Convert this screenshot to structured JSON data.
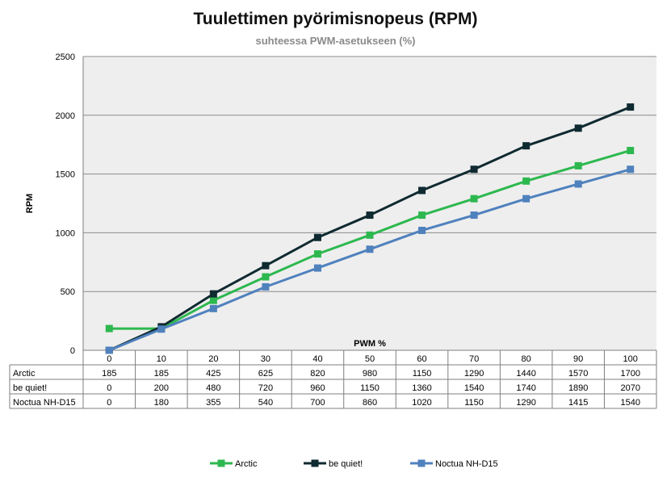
{
  "title": "Tuulettimen pyörimisnopeus (RPM)",
  "subtitle": "suhteessa PWM-asetukseen (%)",
  "chart_data": {
    "type": "line",
    "title": "Tuulettimen pyörimisnopeus (RPM)",
    "subtitle": "suhteessa PWM-asetukseen (%)",
    "xlabel": "PWM %",
    "ylabel": "RPM",
    "ylim": [
      0,
      2500
    ],
    "yticks": [
      0,
      500,
      1000,
      1500,
      2000,
      2500
    ],
    "grid": true,
    "legend": "bottom",
    "categories": [
      "0",
      "10",
      "20",
      "30",
      "40",
      "50",
      "60",
      "70",
      "80",
      "90",
      "100"
    ],
    "series": [
      {
        "name": "Arctic",
        "color": "#2db84f",
        "values": [
          185,
          185,
          425,
          625,
          820,
          980,
          1150,
          1290,
          1440,
          1570,
          1700
        ]
      },
      {
        "name": "be quiet!",
        "color": "#0f2a30",
        "values": [
          0,
          200,
          480,
          720,
          960,
          1150,
          1360,
          1540,
          1740,
          1890,
          2070
        ]
      },
      {
        "name": "Noctua NH-D15",
        "color": "#4f81bd",
        "values": [
          0,
          180,
          355,
          540,
          700,
          860,
          1020,
          1150,
          1290,
          1415,
          1540
        ]
      }
    ]
  }
}
